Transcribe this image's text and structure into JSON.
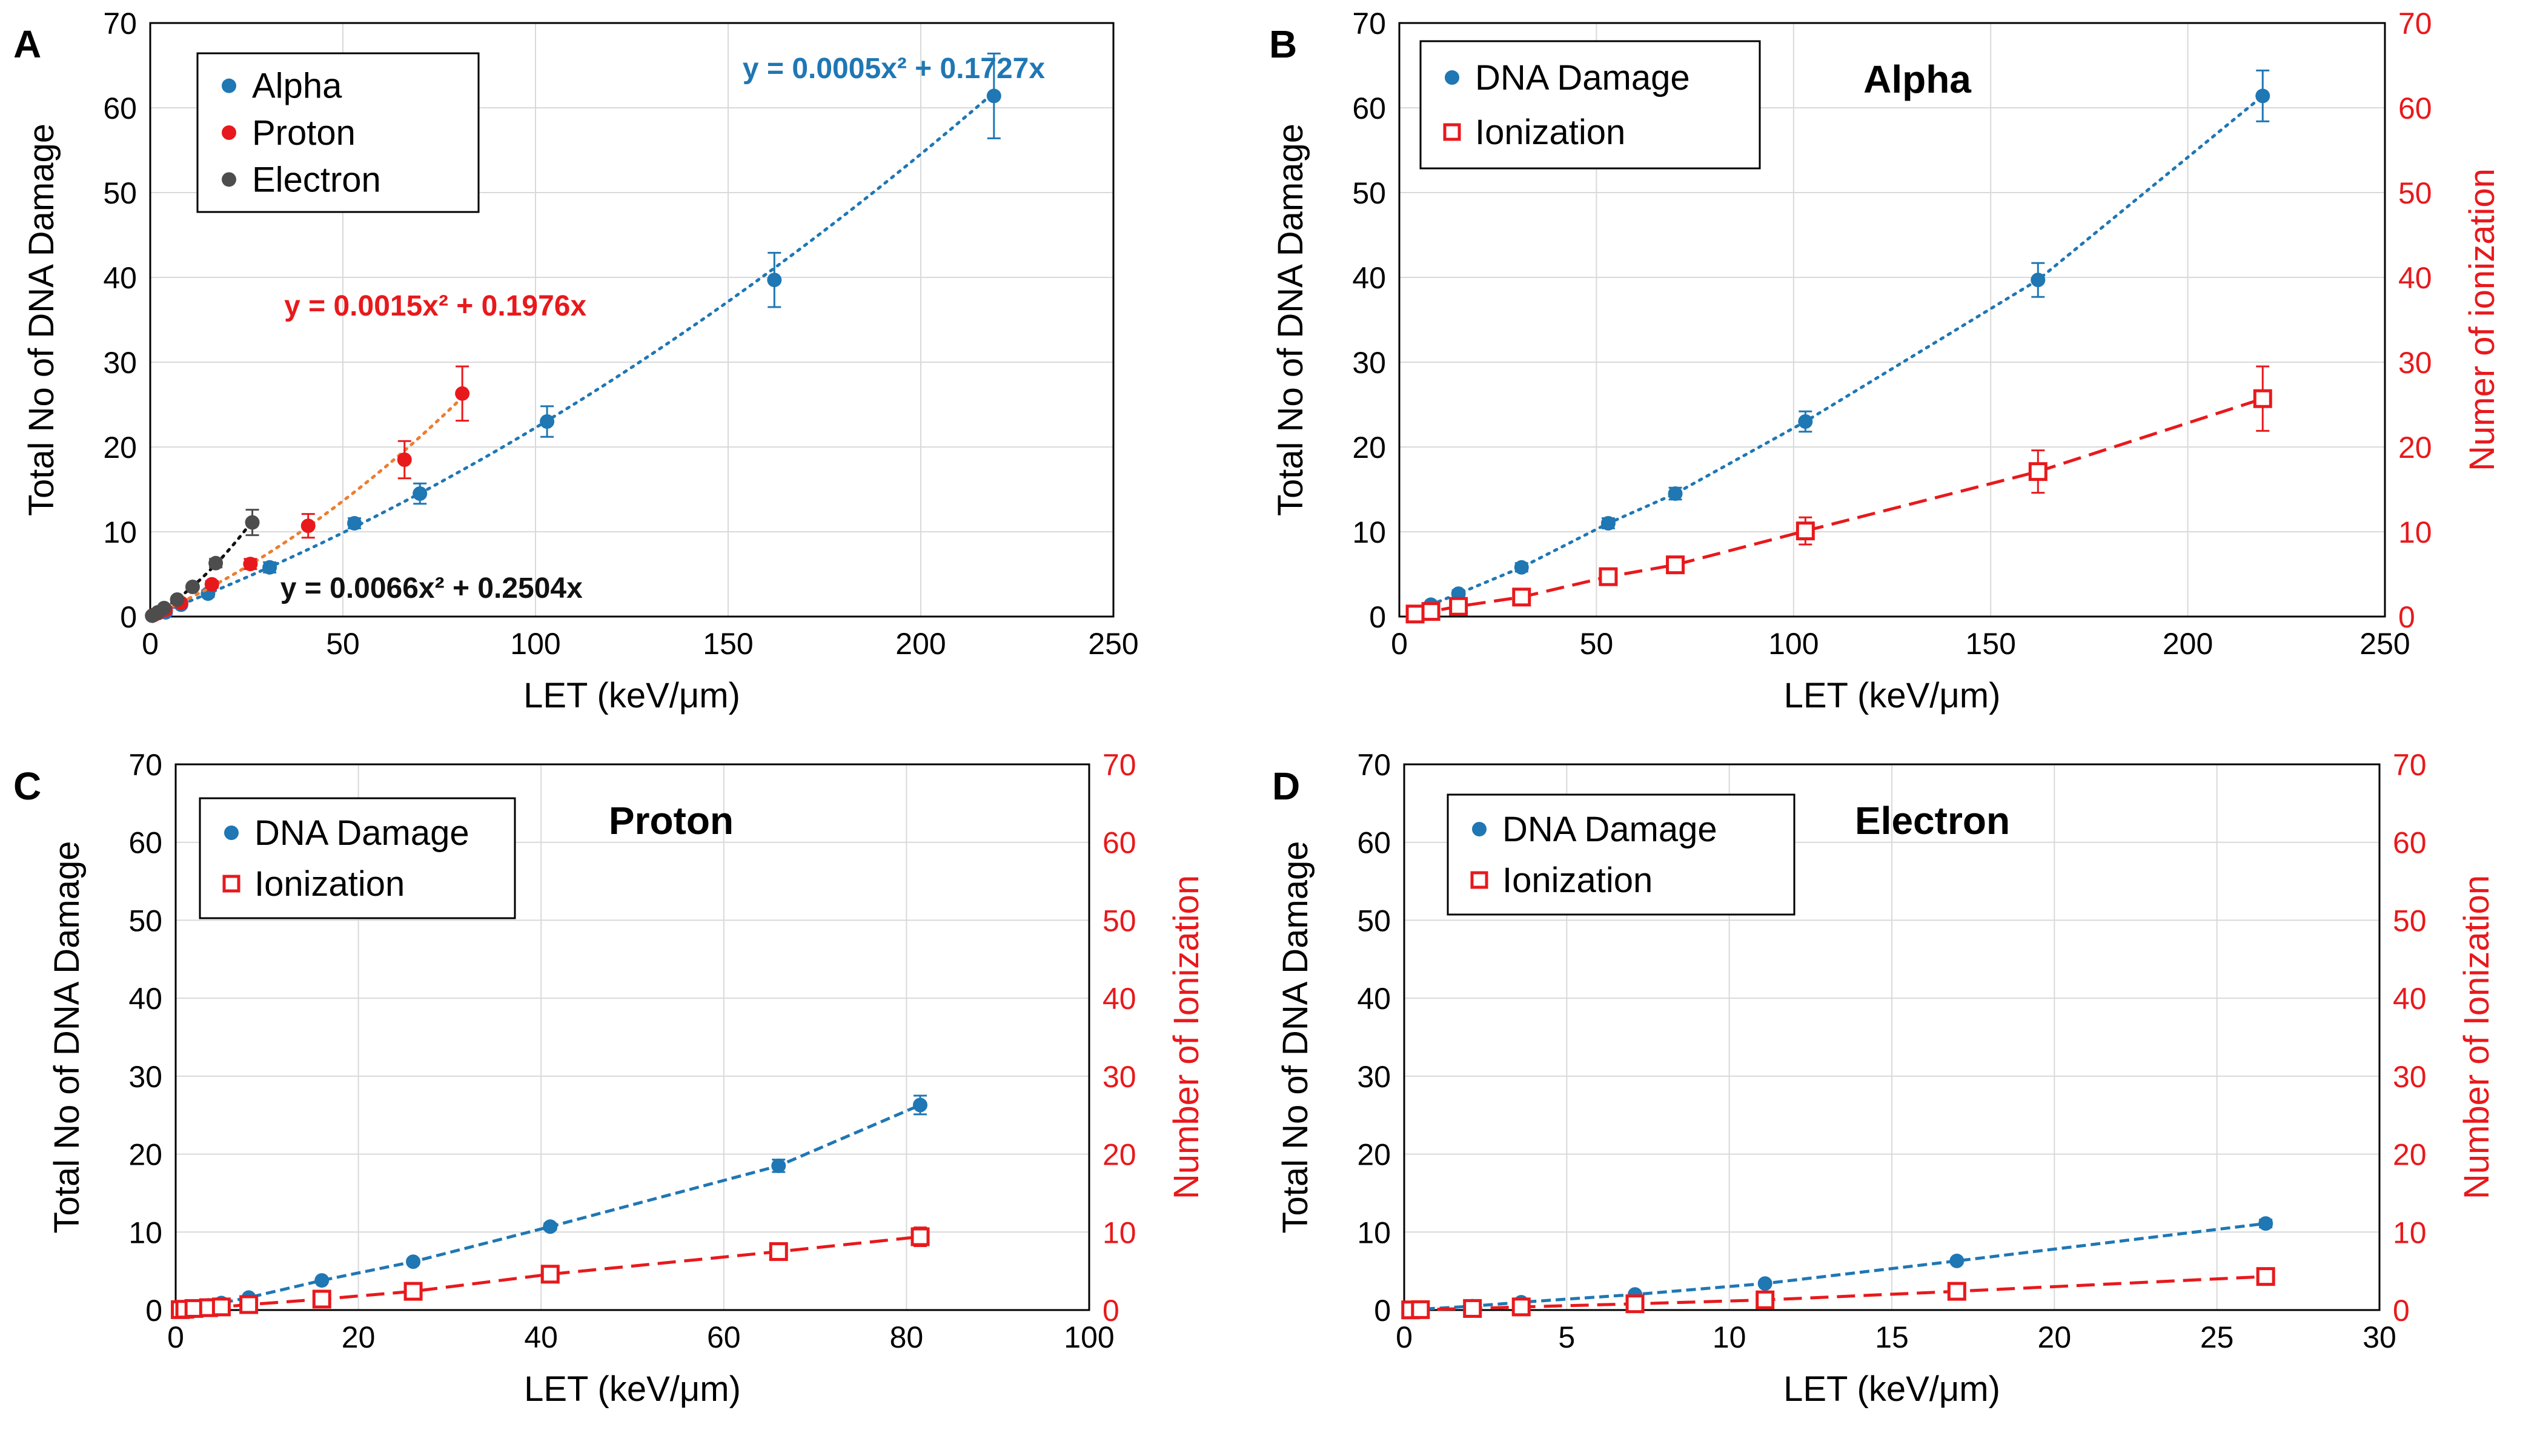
{
  "colors": {
    "blue": "#1f77b4",
    "red": "#e8191c",
    "dark": "#4d4d4d",
    "orange": "#ed7d31",
    "black": "#111111",
    "grid": "#d9d9d9"
  },
  "chart_data": [
    {
      "panel": "A",
      "type": "scatter",
      "xlabel": "LET (keV/μm)",
      "ylabel": "Total No of DNA Damage",
      "xlim": [
        0,
        250
      ],
      "xticks": [
        0,
        50,
        100,
        150,
        200,
        250
      ],
      "ylim": [
        0,
        70
      ],
      "yticks": [
        0,
        10,
        20,
        30,
        40,
        50,
        60,
        70
      ],
      "grid": true,
      "legend_position": "top-left",
      "series": [
        {
          "name": "Alpha",
          "color": "#1f77b4",
          "marker": "dot",
          "x": [
            4,
            8,
            15,
            31,
            53,
            70,
            103,
            162,
            219
          ],
          "y": [
            0.5,
            1.4,
            2.7,
            5.8,
            11.0,
            14.5,
            23.0,
            39.7,
            61.4
          ],
          "err": [
            0,
            0,
            0.4,
            0.6,
            0.6,
            1.2,
            1.8,
            3.2,
            5.0
          ],
          "fit": {
            "a": 0.0005,
            "b": 0.1727,
            "style": "dotted",
            "color": "#1f77b4",
            "xmax": 219
          }
        },
        {
          "name": "Proton",
          "color": "#e8191c",
          "marker": "dot",
          "x": [
            1,
            2,
            4,
            8,
            16,
            26,
            41,
            66,
            81
          ],
          "y": [
            0.2,
            0.4,
            0.8,
            1.6,
            3.8,
            6.2,
            10.7,
            18.5,
            26.3
          ],
          "err": [
            0,
            0,
            0,
            0,
            0.4,
            0.6,
            1.4,
            2.2,
            3.2
          ],
          "fit": {
            "a": 0.0015,
            "b": 0.1976,
            "style": "dotted",
            "color": "#ed7d31",
            "xmax": 81
          }
        },
        {
          "name": "Electron",
          "color": "#4d4d4d",
          "marker": "dot",
          "x": [
            0.5,
            2,
            3.6,
            7,
            11,
            17,
            26.5
          ],
          "y": [
            0.1,
            0.5,
            1.0,
            2.0,
            3.5,
            6.3,
            11.1
          ],
          "err": [
            0,
            0,
            0,
            0,
            0,
            0.5,
            1.5
          ],
          "fit": {
            "a": 0.0066,
            "b": 0.2504,
            "style": "dotted",
            "color": "#111111",
            "xmax": 26.5
          }
        }
      ],
      "annotations": [
        {
          "text": "y = 0.0005x² + 0.1727x",
          "color": "#1f77b4",
          "at": [
            193,
            63.5
          ]
        },
        {
          "text": "y = 0.0015x² + 0.1976x",
          "color": "#e8191c",
          "at": [
            74,
            35.5
          ]
        },
        {
          "text": "y = 0.0066x² + 0.2504x",
          "color": "#111111",
          "at": [
            73,
            2.2
          ]
        }
      ]
    },
    {
      "panel": "B",
      "type": "scatter",
      "title": "Alpha",
      "xlabel": "LET (keV/μm)",
      "ylabel": "Total No of DNA Damage",
      "y2label": "Numer of ionization",
      "xlim": [
        0,
        250
      ],
      "xticks": [
        0,
        50,
        100,
        150,
        200,
        250
      ],
      "ylim": [
        0,
        70
      ],
      "yticks": [
        0,
        10,
        20,
        30,
        40,
        50,
        60,
        70
      ],
      "y2lim": [
        0,
        70
      ],
      "y2ticks": [
        0,
        10,
        20,
        30,
        40,
        50,
        60,
        70
      ],
      "grid": true,
      "legend_position": "top-left",
      "series": [
        {
          "name": "DNA Damage",
          "color": "#1f77b4",
          "marker": "dot",
          "x": [
            4,
            8,
            15,
            31,
            53,
            70,
            103,
            162,
            219
          ],
          "y": [
            0.5,
            1.4,
            2.7,
            5.8,
            11.0,
            14.5,
            23.0,
            39.7,
            61.4
          ],
          "err": [
            0,
            0,
            0.4,
            0.5,
            0.6,
            0.7,
            1.2,
            2.0,
            3.0
          ],
          "line": "dotted"
        },
        {
          "name": "Ionization",
          "color": "#e8191c",
          "marker": "open-square",
          "x": [
            4,
            8,
            15,
            31,
            53,
            70,
            103,
            162,
            219
          ],
          "y": [
            0.3,
            0.6,
            1.2,
            2.3,
            4.7,
            6.1,
            10.1,
            17.1,
            25.7
          ],
          "err": [
            0,
            0,
            0.3,
            0.4,
            0.6,
            0.9,
            1.6,
            2.5,
            3.8
          ],
          "line": "dashed"
        }
      ]
    },
    {
      "panel": "C",
      "type": "scatter",
      "title": "Proton",
      "xlabel": "LET (keV/μm)",
      "ylabel": "Total No of DNA Damage",
      "y2label": "Number of Ionization",
      "xlim": [
        0,
        100
      ],
      "xticks": [
        0,
        20,
        40,
        60,
        80,
        100
      ],
      "ylim": [
        0,
        70
      ],
      "yticks": [
        0,
        10,
        20,
        30,
        40,
        50,
        60,
        70
      ],
      "y2lim": [
        0,
        70
      ],
      "y2ticks": [
        0,
        10,
        20,
        30,
        40,
        50,
        60,
        70
      ],
      "grid": true,
      "legend_position": "top-left",
      "series": [
        {
          "name": "DNA Damage",
          "color": "#1f77b4",
          "marker": "dot",
          "x": [
            0.5,
            1,
            2,
            3.6,
            5,
            8,
            16,
            26,
            41,
            66,
            81.5
          ],
          "y": [
            0.1,
            0.2,
            0.4,
            0.6,
            0.9,
            1.6,
            3.8,
            6.2,
            10.7,
            18.5,
            26.3
          ],
          "err": [
            0,
            0,
            0,
            0,
            0,
            0,
            0,
            0.3,
            0.4,
            0.8,
            1.2
          ],
          "line": "dashed-fine"
        },
        {
          "name": "Ionization",
          "color": "#e8191c",
          "marker": "open-square",
          "x": [
            0.5,
            1,
            2,
            3.6,
            5,
            8,
            16,
            26,
            41,
            66,
            81.5
          ],
          "y": [
            0.05,
            0.1,
            0.2,
            0.3,
            0.4,
            0.7,
            1.4,
            2.4,
            4.6,
            7.5,
            9.4
          ],
          "err": [
            0,
            0,
            0,
            0,
            0,
            0,
            0,
            0.3,
            0.5,
            0.8,
            1.2
          ],
          "line": "dashed"
        }
      ]
    },
    {
      "panel": "D",
      "type": "scatter",
      "title": "Electron",
      "xlabel": "LET (keV/μm)",
      "ylabel": "Total No of DNA Damage",
      "y2label": "Number of Ionization",
      "xlim": [
        0,
        30
      ],
      "xticks": [
        0,
        5,
        10,
        15,
        20,
        25,
        30
      ],
      "ylim": [
        0,
        70
      ],
      "yticks": [
        0,
        10,
        20,
        30,
        40,
        50,
        60,
        70
      ],
      "y2lim": [
        0,
        70
      ],
      "y2ticks": [
        0,
        10,
        20,
        30,
        40,
        50,
        60,
        70
      ],
      "grid": true,
      "legend_position": "top-left",
      "series": [
        {
          "name": "DNA Damage",
          "color": "#1f77b4",
          "marker": "dot",
          "x": [
            0.2,
            0.5,
            2.1,
            3.6,
            7.1,
            11.1,
            17,
            26.5
          ],
          "y": [
            0.05,
            0.1,
            0.5,
            1.0,
            2.0,
            3.4,
            6.3,
            11.1
          ],
          "err": [
            0,
            0,
            0,
            0,
            0,
            0,
            0.3,
            0.5
          ],
          "line": "dashed-fine"
        },
        {
          "name": "Ionization",
          "color": "#e8191c",
          "marker": "open-square",
          "x": [
            0.2,
            0.5,
            2.1,
            3.6,
            7.1,
            11.1,
            17,
            26.5
          ],
          "y": [
            0.02,
            0.05,
            0.2,
            0.4,
            0.8,
            1.3,
            2.4,
            4.3
          ],
          "err": [
            0,
            0,
            0,
            0,
            0,
            0.2,
            0.3,
            0.4
          ],
          "line": "dashed"
        }
      ]
    }
  ]
}
